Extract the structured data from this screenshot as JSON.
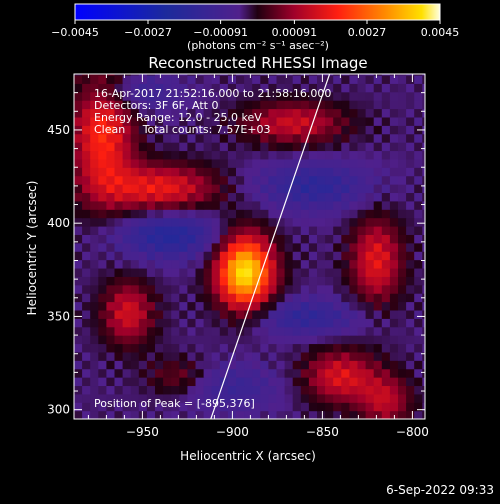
{
  "chart_data": {
    "type": "heatmap",
    "title": "Reconstructed RHESSI Image",
    "xlabel": "Heliocentric X (arcsec)",
    "ylabel": "Heliocentric Y (arcsec)",
    "xlim": [
      -988,
      -793
    ],
    "ylim": [
      295,
      480
    ],
    "x_ticks": [
      -950,
      -900,
      -850,
      -800
    ],
    "y_ticks": [
      300,
      350,
      400,
      450
    ],
    "colorbar": {
      "min": -0.0045,
      "max": 0.0045,
      "ticks": [
        -0.0045,
        -0.0027,
        -0.00091,
        0.00091,
        0.0027,
        0.0045
      ],
      "tick_labels": [
        "-0.0045",
        "-0.0027",
        "-0.00091",
        "0.00091",
        "0.0027",
        "0.0045"
      ],
      "units": "(photons cm⁻² s⁻¹ asec⁻²)"
    },
    "annotations": [
      "16-Apr-2017 21:52:16.000 to 21:58:16.000",
      "Detectors: 3F 6F, Att 0",
      "Energy Range: 12.0 - 25.0 keV",
      "Clean     Total counts: 7.57E+03"
    ],
    "peak_label": "Position of Peak = [-895,376]",
    "peak": [
      -895,
      376
    ],
    "sources": [
      {
        "x": -893,
        "y": 374,
        "sx": 11,
        "sy": 14,
        "amp": 0.0045
      },
      {
        "x": -972,
        "y": 448,
        "sx": 12,
        "sy": 24,
        "amp": 0.0024
      },
      {
        "x": -940,
        "y": 419,
        "sx": 22,
        "sy": 9,
        "amp": 0.0021
      },
      {
        "x": -866,
        "y": 454,
        "sx": 20,
        "sy": 8,
        "amp": 0.0017
      },
      {
        "x": -820,
        "y": 380,
        "sx": 10,
        "sy": 16,
        "amp": 0.002
      },
      {
        "x": -840,
        "y": 318,
        "sx": 14,
        "sy": 10,
        "amp": 0.0019
      },
      {
        "x": -958,
        "y": 352,
        "sx": 10,
        "sy": 12,
        "amp": 0.0018
      },
      {
        "x": -815,
        "y": 305,
        "sx": 10,
        "sy": 10,
        "amp": 0.0015
      },
      {
        "x": -930,
        "y": 318,
        "sx": 12,
        "sy": 7,
        "amp": 0.0009
      },
      {
        "x": -935,
        "y": 394,
        "sx": 20,
        "sy": 9,
        "amp": -0.0016
      },
      {
        "x": -855,
        "y": 420,
        "sx": 22,
        "sy": 9,
        "amp": -0.0013
      },
      {
        "x": -955,
        "y": 470,
        "sx": 18,
        "sy": 7,
        "amp": -0.001
      },
      {
        "x": -860,
        "y": 350,
        "sx": 22,
        "sy": 7,
        "amp": -0.0012
      },
      {
        "x": -900,
        "y": 312,
        "sx": 18,
        "sy": 9,
        "amp": -0.0009
      }
    ],
    "limb_line": [
      [
        -912,
        295
      ],
      [
        -846,
        480
      ]
    ]
  },
  "footer": {
    "date": "6-Sep-2022 09:33"
  }
}
